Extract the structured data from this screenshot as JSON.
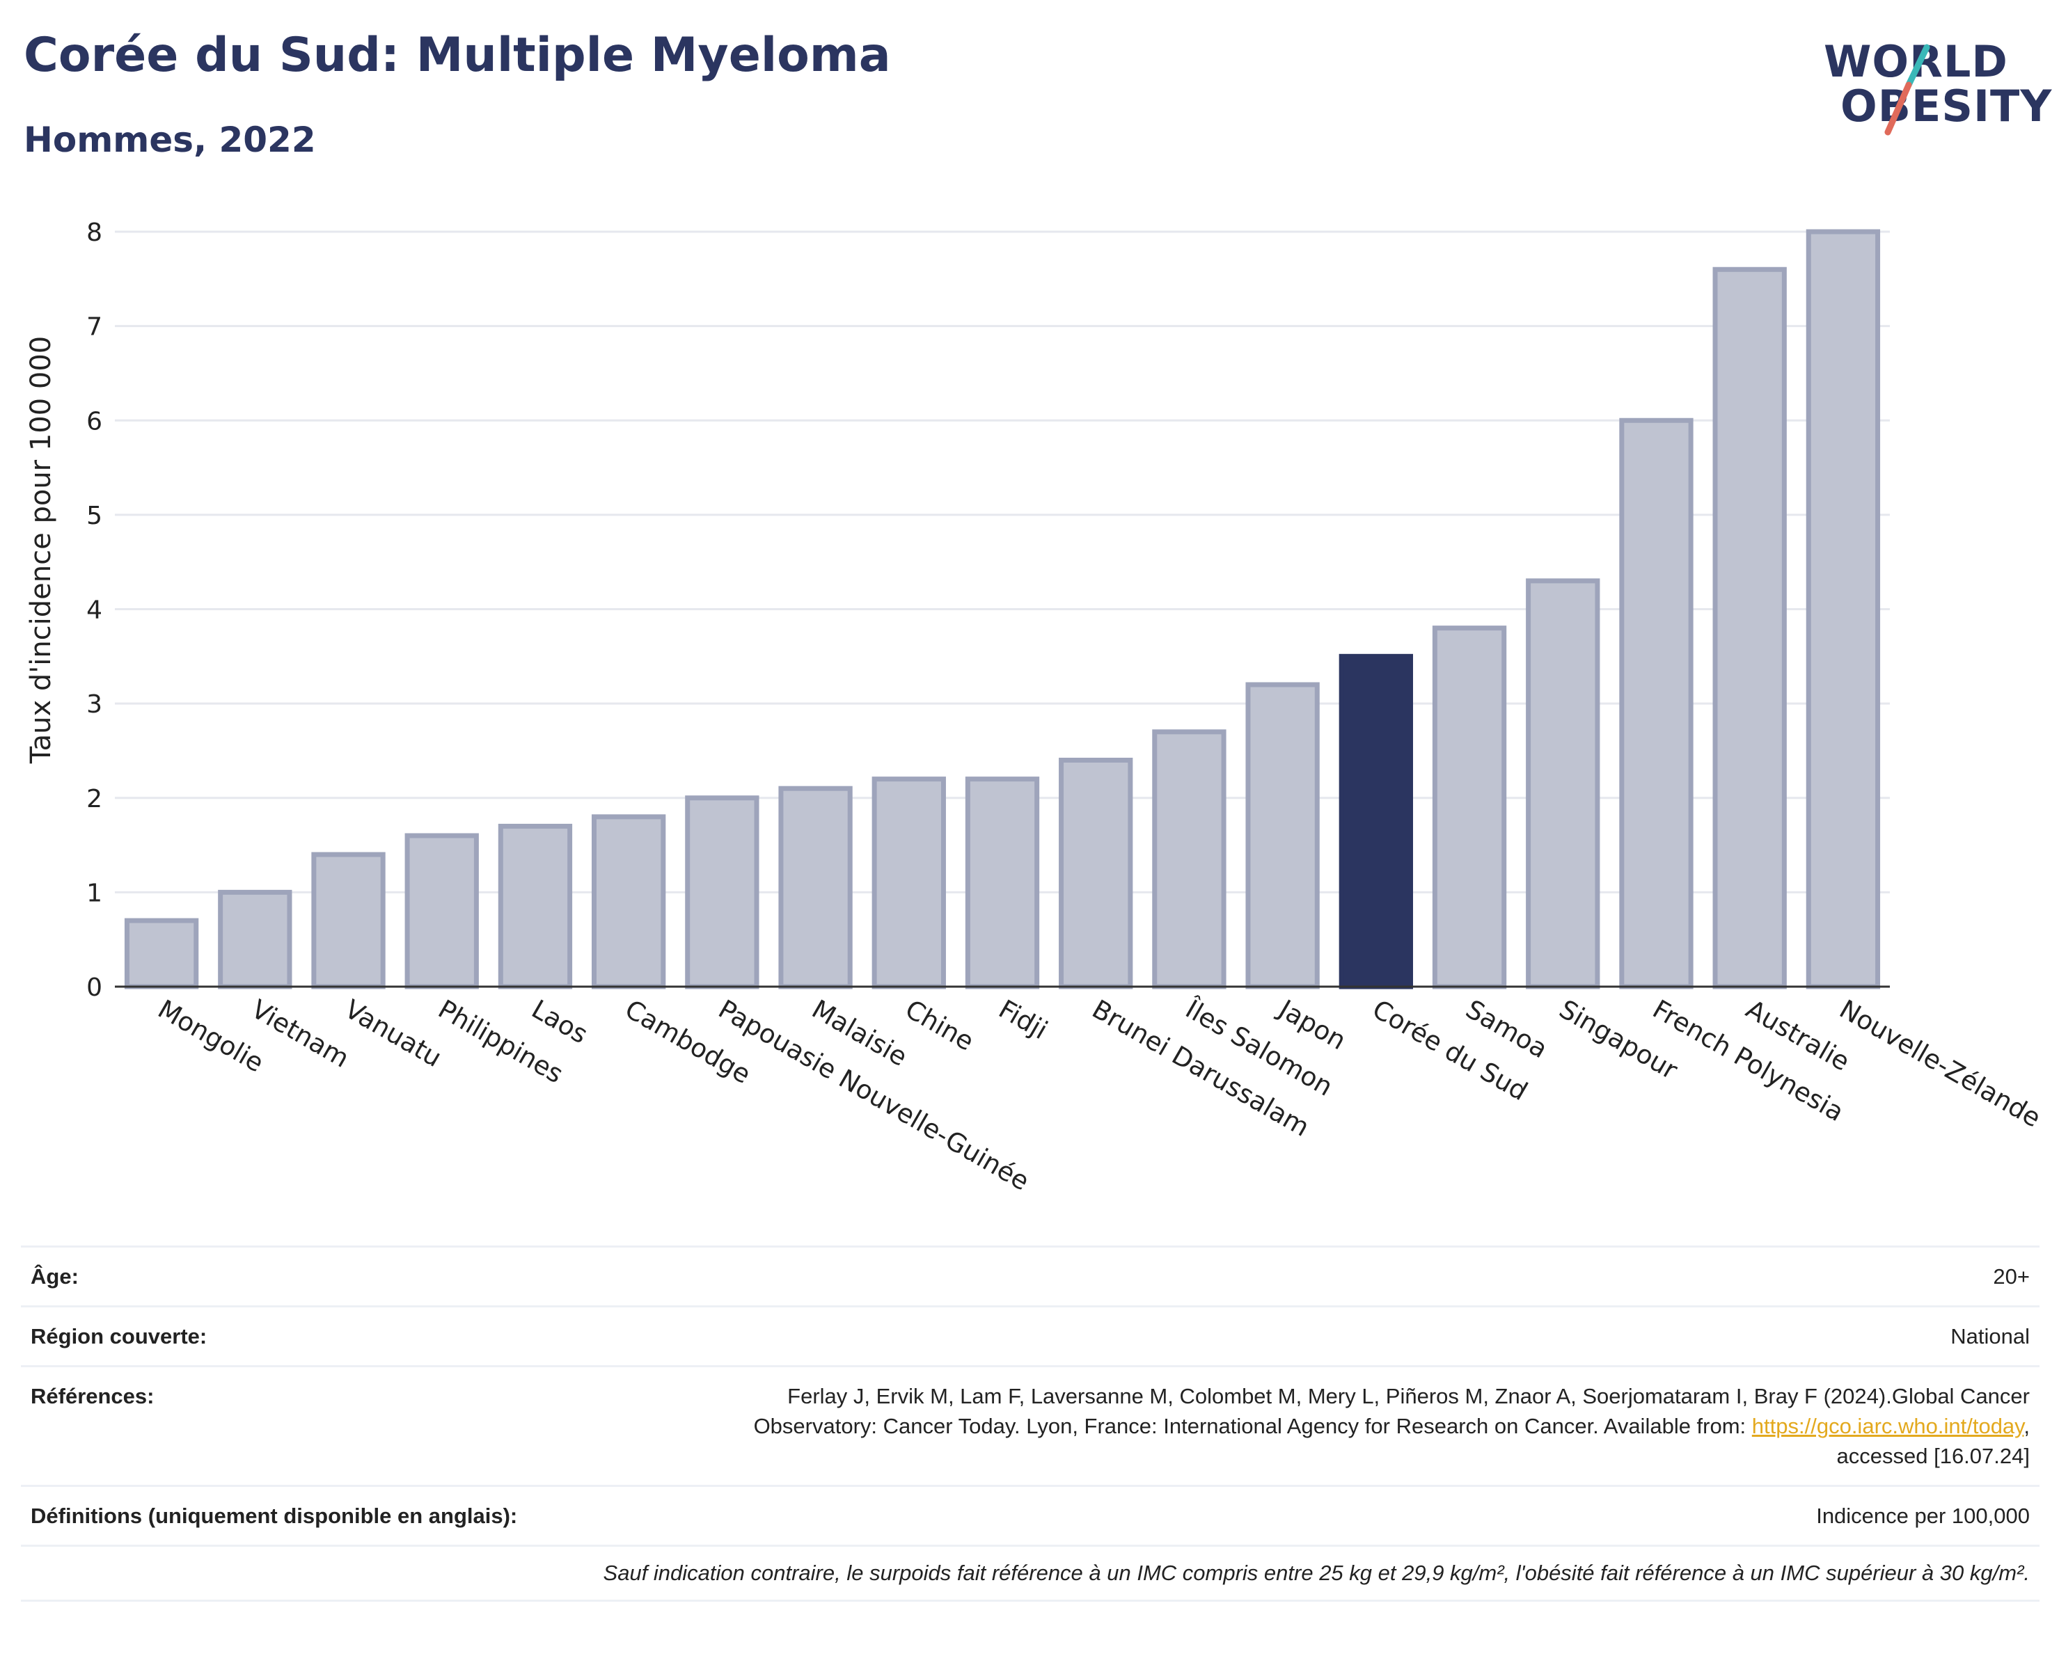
{
  "title": "Corée du Sud: Multiple Myeloma",
  "subtitle": "Hommes, 2022",
  "logo": {
    "line1": "WORLD",
    "line2": "OBESITY",
    "accent_teal": "#3ab8b8",
    "accent_red": "#e06a5a"
  },
  "colors": {
    "bar": "#bfc3d1",
    "bar_stroke": "#9ea4bb",
    "highlight": "#2b3560",
    "grid": "#e6e8ee"
  },
  "chart_data": {
    "type": "bar",
    "title": "Corée du Sud: Multiple Myeloma",
    "subtitle": "Hommes, 2022",
    "xlabel": "",
    "ylabel": "Taux d'incidence pour 100 000",
    "ylim": [
      0,
      8
    ],
    "yticks": [
      0,
      1,
      2,
      3,
      4,
      5,
      6,
      7,
      8
    ],
    "grid": true,
    "highlight": "Corée du Sud",
    "categories": [
      "Mongolie",
      "Vietnam",
      "Vanuatu",
      "Philippines",
      "Laos",
      "Cambodge",
      "Papouasie Nouvelle-Guinée",
      "Malaisie",
      "Chine",
      "Fidji",
      "Brunei Darussalam",
      "Îles Salomon",
      "Japon",
      "Corée du Sud",
      "Samoa",
      "Singapour",
      "French Polynesia",
      "Australie",
      "Nouvelle-Zélande"
    ],
    "values": [
      0.7,
      1.0,
      1.4,
      1.6,
      1.7,
      1.8,
      2.0,
      2.1,
      2.2,
      2.2,
      2.4,
      2.7,
      3.2,
      3.5,
      3.8,
      4.3,
      6.0,
      7.6,
      8.0
    ]
  },
  "table": {
    "age_label": "Âge:",
    "age_value": "20+",
    "region_label": "Région couverte:",
    "region_value": "National",
    "refs_label": "Références:",
    "refs_line1": "Ferlay J, Ervik M, Lam F, Laversanne M, Colombet M, Mery L, Piñeros M, Znaor A, Soerjomataram I, Bray F (2024).Global Cancer",
    "refs_line2": "Observatory: Cancer Today. Lyon, France: International Agency for Research on Cancer. Available from:",
    "refs_link": "https://gco.iarc.who.int/today",
    "refs_line3": "accessed [16.07.24]",
    "defs_label": "Définitions (uniquement disponible en anglais):",
    "defs_value": "Indicence per 100,000",
    "note": "Sauf indication contraire, le surpoids fait référence à un IMC compris entre 25 kg et 29,9 kg/m², l'obésité fait référence à un IMC supérieur à 30 kg/m²."
  }
}
